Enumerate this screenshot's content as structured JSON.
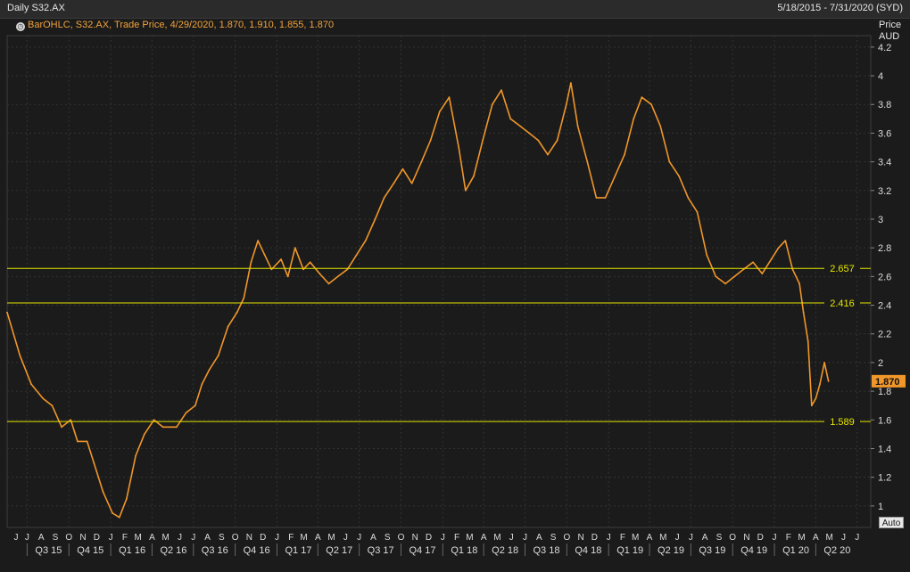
{
  "header": {
    "title": "Daily S32.AX",
    "date_range": "5/18/2015 - 7/31/2020 (SYD)"
  },
  "legend": {
    "icon": "clock-icon",
    "text": "BarOHLC, S32.AX, Trade Price, 4/29/2020, 1.870, 1.910, 1.855, 1.870"
  },
  "axis_header": {
    "line1": "Price",
    "line2": "AUD"
  },
  "auto_button": "Auto",
  "colors": {
    "background": "#1b1b1b",
    "series": "#f0962a",
    "levels": "#e6e600",
    "last_tag": "#f0962a"
  },
  "chart_data": {
    "type": "line",
    "series": [
      {
        "x": [
          "2015-05-18",
          "2015-06-15",
          "2015-07-10",
          "2015-08-05",
          "2015-08-25",
          "2015-09-15",
          "2015-10-05",
          "2015-10-20",
          "2015-11-10",
          "2015-11-25",
          "2015-12-15",
          "2016-01-05",
          "2016-01-20",
          "2016-02-05",
          "2016-02-25",
          "2016-03-15",
          "2016-04-05",
          "2016-04-25",
          "2016-05-10",
          "2016-05-25",
          "2016-06-15",
          "2016-07-05",
          "2016-07-20",
          "2016-08-05",
          "2016-08-25",
          "2016-09-15",
          "2016-10-05",
          "2016-10-20",
          "2016-11-05",
          "2016-11-20",
          "2016-12-05",
          "2016-12-20",
          "2017-01-10",
          "2017-01-25",
          "2017-02-10",
          "2017-02-28",
          "2017-03-15",
          "2017-04-05",
          "2017-04-25",
          "2017-05-15",
          "2017-06-05",
          "2017-06-25",
          "2017-07-15",
          "2017-08-05",
          "2017-08-25",
          "2017-09-15",
          "2017-10-05",
          "2017-10-25",
          "2017-11-15",
          "2017-12-05",
          "2017-12-25",
          "2018-01-15",
          "2018-02-05",
          "2018-02-20",
          "2018-03-10",
          "2018-03-30",
          "2018-04-20",
          "2018-05-10",
          "2018-05-30",
          "2018-06-20",
          "2018-07-10",
          "2018-07-30",
          "2018-08-20",
          "2018-09-10",
          "2018-09-30",
          "2018-10-10",
          "2018-10-25",
          "2018-11-15",
          "2018-12-05",
          "2018-12-25",
          "2019-01-15",
          "2019-02-05",
          "2019-02-25",
          "2019-03-15",
          "2019-04-05",
          "2019-04-25",
          "2019-05-15",
          "2019-06-05",
          "2019-06-25",
          "2019-07-15",
          "2019-08-05",
          "2019-08-25",
          "2019-09-15",
          "2019-10-05",
          "2019-10-25",
          "2019-11-15",
          "2019-12-05",
          "2019-12-25",
          "2020-01-10",
          "2020-01-25",
          "2020-02-10",
          "2020-02-25",
          "2020-03-05",
          "2020-03-15",
          "2020-03-23",
          "2020-04-01",
          "2020-04-10",
          "2020-04-20",
          "2020-04-29"
        ],
        "y": [
          2.35,
          2.05,
          1.85,
          1.75,
          1.7,
          1.55,
          1.6,
          1.45,
          1.45,
          1.3,
          1.1,
          0.95,
          0.92,
          1.05,
          1.35,
          1.5,
          1.6,
          1.55,
          1.55,
          1.55,
          1.65,
          1.7,
          1.85,
          1.95,
          2.05,
          2.25,
          2.35,
          2.45,
          2.7,
          2.85,
          2.75,
          2.65,
          2.72,
          2.6,
          2.8,
          2.65,
          2.7,
          2.62,
          2.55,
          2.6,
          2.65,
          2.75,
          2.85,
          3.0,
          3.15,
          3.25,
          3.35,
          3.25,
          3.4,
          3.55,
          3.75,
          3.85,
          3.5,
          3.2,
          3.3,
          3.55,
          3.8,
          3.9,
          3.7,
          3.65,
          3.6,
          3.55,
          3.45,
          3.55,
          3.8,
          3.95,
          3.65,
          3.4,
          3.15,
          3.15,
          3.3,
          3.45,
          3.7,
          3.85,
          3.8,
          3.65,
          3.4,
          3.3,
          3.15,
          3.05,
          2.75,
          2.6,
          2.55,
          2.6,
          2.65,
          2.7,
          2.62,
          2.72,
          2.8,
          2.85,
          2.65,
          2.55,
          2.35,
          2.15,
          1.7,
          1.75,
          1.85,
          2.0,
          1.87
        ]
      }
    ],
    "y_ticks": [
      "1",
      "1.2",
      "1.4",
      "1.6",
      "1.8",
      "2",
      "2.2",
      "2.4",
      "2.6",
      "2.8",
      "3",
      "3.2",
      "3.4",
      "3.6",
      "3.8",
      "4",
      "4.2"
    ],
    "ylim": [
      0.85,
      4.28
    ],
    "xlim": [
      "2015-05-18",
      "2020-07-31"
    ],
    "x_month_labels": [
      "J",
      "J",
      "A",
      "S",
      "O",
      "N",
      "D",
      "J",
      "F",
      "M",
      "A",
      "M",
      "J",
      "J",
      "A",
      "S",
      "O",
      "N",
      "D",
      "J",
      "F",
      "M",
      "A",
      "M",
      "J",
      "J",
      "A",
      "S",
      "O",
      "N",
      "D",
      "J",
      "F",
      "M",
      "A",
      "M",
      "J",
      "J",
      "A",
      "S",
      "O",
      "N",
      "D",
      "J",
      "F",
      "M",
      "A",
      "M",
      "J",
      "J",
      "A",
      "S",
      "O",
      "N",
      "D",
      "J",
      "F",
      "M",
      "A",
      "M",
      "J",
      "J"
    ],
    "x_quarter_labels": [
      "Q3 15",
      "Q4 15",
      "Q1 16",
      "Q2 16",
      "Q3 16",
      "Q4 16",
      "Q1 17",
      "Q2 17",
      "Q3 17",
      "Q4 17",
      "Q1 18",
      "Q2 18",
      "Q3 18",
      "Q4 18",
      "Q1 19",
      "Q2 19",
      "Q3 19",
      "Q4 19",
      "Q1 20",
      "Q2 20"
    ],
    "horizontal_levels": [
      {
        "label": "2.657",
        "value": 2.657
      },
      {
        "label": "2.416",
        "value": 2.416
      },
      {
        "label": "1.589",
        "value": 1.589
      }
    ],
    "last_value_tag": {
      "label": "1.870",
      "value": 1.87
    },
    "grid": true
  }
}
